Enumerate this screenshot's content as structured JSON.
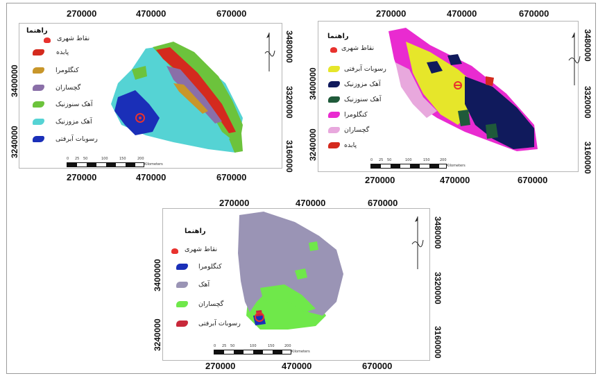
{
  "panels": [
    {
      "id": "left",
      "x_ticks": [
        "270000",
        "470000",
        "670000"
      ],
      "y_ticks_left": [
        "3400000",
        "3240000"
      ],
      "y_ticks_right": [
        "3480000",
        "3320000",
        "3160000"
      ],
      "legend_title": "راهنما",
      "legend": [
        {
          "label": "نقاط شهری",
          "color": "#e8322e"
        },
        {
          "label": "پابده",
          "color": "#d42a1e"
        },
        {
          "label": "کنگلومرا",
          "color": "#c8962a"
        },
        {
          "label": "گچساران",
          "color": "#8a6fa8"
        },
        {
          "label": "آهک سنوزنیک",
          "color": "#6cc33c"
        },
        {
          "label": "آهک مزوزنیک",
          "color": "#55d3d4"
        },
        {
          "label": "رسوبات آبرفتی",
          "color": "#1a2fb8"
        }
      ],
      "scale_labels": [
        "0",
        "25",
        "50",
        "100",
        "150",
        "200",
        "Kilometers"
      ]
    },
    {
      "id": "right",
      "x_ticks": [
        "270000",
        "470000",
        "670000"
      ],
      "y_ticks_left": [
        "3400000",
        "3240000"
      ],
      "y_ticks_right": [
        "3480000",
        "3320000",
        "3160000"
      ],
      "legend_title": "راهنما",
      "legend": [
        {
          "label": "نقاط شهری",
          "color": "#e8322e"
        },
        {
          "label": "رسوبات آبرفتی",
          "color": "#e6e62a"
        },
        {
          "label": "آهک مزوزنیک",
          "color": "#101a5c"
        },
        {
          "label": "آهک سنوزنیک",
          "color": "#1f5a3a"
        },
        {
          "label": "کنگلومرا",
          "color": "#e92bd0"
        },
        {
          "label": "گچساران",
          "color": "#e8a8dd"
        },
        {
          "label": "پابده",
          "color": "#d42a1e"
        }
      ],
      "scale_labels": [
        "0",
        "25",
        "50",
        "100",
        "150",
        "200",
        "Kilometers"
      ]
    },
    {
      "id": "bottom",
      "x_ticks": [
        "270000",
        "470000",
        "670000"
      ],
      "y_ticks_left": [
        "3400000",
        "3240000"
      ],
      "y_ticks_right": [
        "3480000",
        "3320000",
        "3160000"
      ],
      "legend_title": "راهنما",
      "legend": [
        {
          "label": "نقاط شهری",
          "color": "#e8322e"
        },
        {
          "label": "کنگلومرا",
          "color": "#1a2fb8"
        },
        {
          "label": "آهک",
          "color": "#9a94b5"
        },
        {
          "label": "گچساران",
          "color": "#6fe84a"
        },
        {
          "label": "رسوبات آبرفتی",
          "color": "#c8283a"
        }
      ],
      "scale_labels": [
        "0",
        "25",
        "50",
        "100",
        "150",
        "200",
        "Kilometers"
      ]
    }
  ]
}
